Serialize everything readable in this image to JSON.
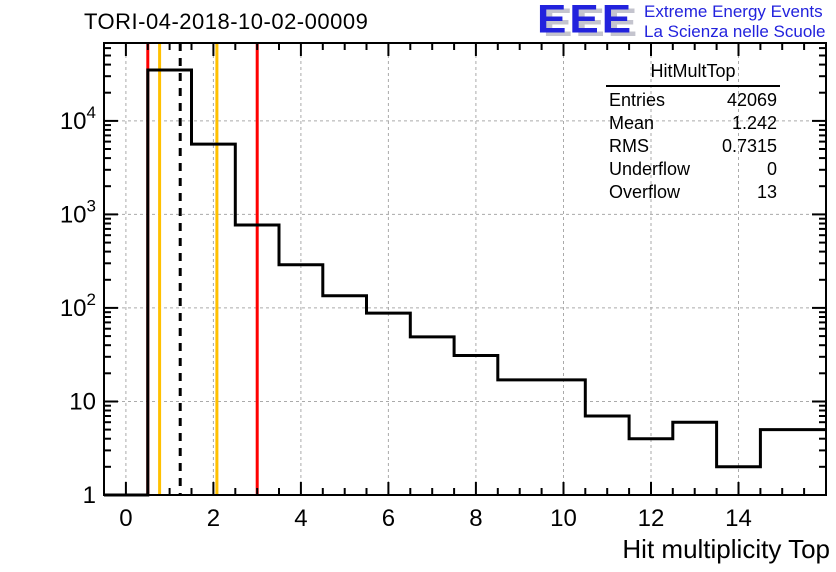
{
  "header": {
    "logo": {
      "eee": "EEE",
      "line1": "Extreme Energy Events",
      "line2": "La Scienza nelle Scuole",
      "color": "#2222dd",
      "shadow_color": "#c4c4ce"
    }
  },
  "chart_data": {
    "type": "step-histogram",
    "title": "TORI-04-2018-10-02-00009",
    "xlabel": "Hit multiplicity Top",
    "ylabel": "",
    "x_range": [
      -0.5,
      16.0
    ],
    "y_scale": "log",
    "y_range": [
      1,
      68000
    ],
    "x_major_ticks": [
      0,
      2,
      4,
      6,
      8,
      10,
      12,
      14
    ],
    "x_minor_tick_step": 0.5,
    "y_decade_ticks": [
      0,
      1,
      2,
      3,
      4
    ],
    "grid": {
      "x_at": [
        0,
        2,
        4,
        6,
        8,
        10,
        12,
        14
      ],
      "y_at_decades": [
        1,
        2,
        3,
        4
      ],
      "color": "#aaaaaa"
    },
    "bins": {
      "centers": [
        0,
        1,
        2,
        3,
        4,
        5,
        6,
        7,
        8,
        9,
        10,
        11,
        12,
        13,
        14,
        15
      ],
      "width": 1,
      "counts": [
        0,
        35000,
        5650,
        770,
        290,
        135,
        88,
        49,
        31,
        17,
        17,
        7,
        4,
        6,
        2,
        5
      ],
      "last_edge_extends_to": 16.0,
      "line_color": "#000000"
    },
    "vlines": [
      {
        "name": "red-cut-low",
        "x": 0.5,
        "color": "#ff0000",
        "style": "solid"
      },
      {
        "name": "orange-cut-low",
        "x": 0.77,
        "color": "#ffc000",
        "style": "solid"
      },
      {
        "name": "mean-line",
        "x": 1.242,
        "color": "#000000",
        "style": "dashed"
      },
      {
        "name": "orange-cut-high",
        "x": 2.08,
        "color": "#ffc000",
        "style": "solid"
      },
      {
        "name": "red-cut-high",
        "x": 3.0,
        "color": "#ff0000",
        "style": "solid"
      }
    ],
    "stats": {
      "title": "HitMultTop",
      "rows": [
        {
          "label": "Entries",
          "value": "42069"
        },
        {
          "label": "Mean",
          "value": "1.242"
        },
        {
          "label": "RMS",
          "value": "0.7315"
        },
        {
          "label": "Underflow",
          "value": "0"
        },
        {
          "label": "Overflow",
          "value": "13"
        }
      ]
    }
  }
}
